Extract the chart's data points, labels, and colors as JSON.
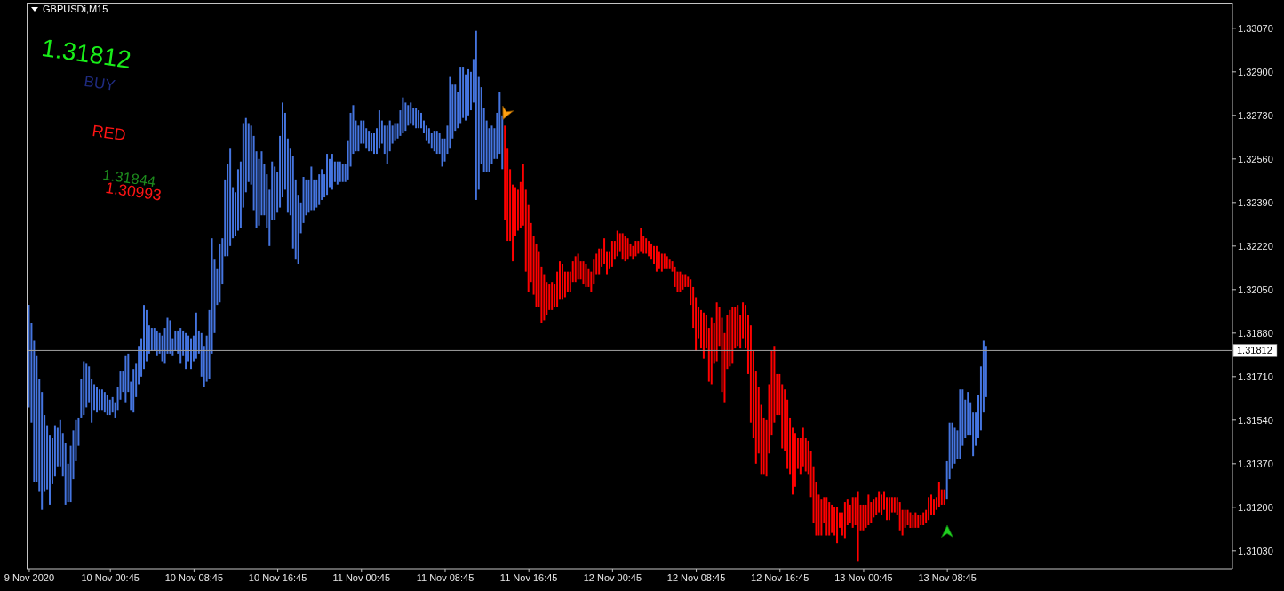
{
  "chart_data": {
    "type": "bar",
    "title": "GBPUSDi,M15",
    "series": [
      {
        "color": "#4575e0",
        "x": [
          "2020-11-09T17:00",
          "2020-11-09T17:15",
          "2020-11-09T17:30",
          "2020-11-09T17:45",
          "2020-11-09T18:00",
          "2020-11-09T18:15",
          "2020-11-09T18:30",
          "2020-11-09T18:45",
          "2020-11-09T19:00",
          "2020-11-09T19:15",
          "2020-11-09T19:30",
          "2020-11-09T19:45",
          "2020-11-09T20:00",
          "2020-11-09T20:15",
          "2020-11-09T20:30",
          "2020-11-09T20:45",
          "2020-11-09T21:00",
          "2020-11-09T21:15",
          "2020-11-09T21:30",
          "2020-11-09T21:45",
          "2020-11-09T22:00",
          "2020-11-09T22:15",
          "2020-11-09T22:30",
          "2020-11-09T22:45",
          "2020-11-09T23:00",
          "2020-11-09T23:15",
          "2020-11-09T23:30",
          "2020-11-09T23:45",
          "2020-11-10T00:00",
          "2020-11-10T00:15",
          "2020-11-10T00:30",
          "2020-11-10T00:45",
          "2020-11-10T01:00",
          "2020-11-10T01:15",
          "2020-11-10T01:30",
          "2020-11-10T01:45",
          "2020-11-10T02:00",
          "2020-11-10T02:15",
          "2020-11-10T02:30",
          "2020-11-10T02:45",
          "2020-11-10T03:00",
          "2020-11-10T03:15",
          "2020-11-10T03:30",
          "2020-11-10T03:45",
          "2020-11-10T04:00",
          "2020-11-10T04:15",
          "2020-11-10T04:30",
          "2020-11-10T04:45",
          "2020-11-10T05:00",
          "2020-11-10T05:15",
          "2020-11-10T05:30",
          "2020-11-10T05:45",
          "2020-11-10T06:00",
          "2020-11-10T06:15",
          "2020-11-10T06:30",
          "2020-11-10T06:45",
          "2020-11-10T07:00",
          "2020-11-10T07:15",
          "2020-11-10T07:30",
          "2020-11-10T07:45",
          "2020-11-10T08:00",
          "2020-11-10T08:15",
          "2020-11-10T08:30",
          "2020-11-10T08:45",
          "2020-11-10T09:00",
          "2020-11-10T09:15",
          "2020-11-10T09:30",
          "2020-11-10T09:45",
          "2020-11-10T10:00",
          "2020-11-10T10:15",
          "2020-11-10T10:30",
          "2020-11-10T10:45",
          "2020-11-10T11:00",
          "2020-11-10T11:15",
          "2020-11-10T11:30",
          "2020-11-10T11:45",
          "2020-11-10T12:00",
          "2020-11-10T12:15",
          "2020-11-10T12:30",
          "2020-11-10T12:45",
          "2020-11-10T13:00",
          "2020-11-10T13:15",
          "2020-11-10T13:30",
          "2020-11-10T13:45",
          "2020-11-10T14:00",
          "2020-11-10T14:15",
          "2020-11-10T14:30",
          "2020-11-10T14:45",
          "2020-11-10T15:00",
          "2020-11-10T15:15",
          "2020-11-10T15:30",
          "2020-11-10T15:45",
          "2020-11-10T16:00",
          "2020-11-10T16:15",
          "2020-11-10T16:30",
          "2020-11-10T16:45",
          "2020-11-10T17:00",
          "2020-11-10T17:15",
          "2020-11-10T17:30",
          "2020-11-10T17:45",
          "2020-11-10T18:00",
          "2020-11-10T18:15",
          "2020-11-10T18:30",
          "2020-11-10T18:45",
          "2020-11-10T19:00",
          "2020-11-10T19:15",
          "2020-11-10T19:30",
          "2020-11-10T19:45",
          "2020-11-10T20:00",
          "2020-11-10T20:15",
          "2020-11-10T20:30",
          "2020-11-10T20:45",
          "2020-11-10T21:00",
          "2020-11-10T21:15",
          "2020-11-10T21:30",
          "2020-11-10T21:45",
          "2020-11-10T22:00",
          "2020-11-10T22:15",
          "2020-11-10T22:30",
          "2020-11-10T22:45",
          "2020-11-10T23:00",
          "2020-11-10T23:15",
          "2020-11-10T23:30",
          "2020-11-10T23:45",
          "2020-11-11T00:00",
          "2020-11-11T00:15",
          "2020-11-11T00:30",
          "2020-11-11T00:45",
          "2020-11-11T01:00",
          "2020-11-11T01:15",
          "2020-11-11T01:30",
          "2020-11-11T01:45",
          "2020-11-11T02:00",
          "2020-11-11T02:15",
          "2020-11-11T02:30",
          "2020-11-11T02:45",
          "2020-11-11T03:00",
          "2020-11-11T03:15",
          "2020-11-11T03:30",
          "2020-11-11T03:45",
          "2020-11-11T04:00",
          "2020-11-11T04:15",
          "2020-11-11T04:30",
          "2020-11-11T04:45",
          "2020-11-11T05:00",
          "2020-11-11T05:15",
          "2020-11-11T05:30",
          "2020-11-11T05:45",
          "2020-11-11T06:00",
          "2020-11-11T06:15",
          "2020-11-11T06:30",
          "2020-11-11T06:45",
          "2020-11-11T07:00",
          "2020-11-11T07:15",
          "2020-11-11T07:30",
          "2020-11-11T07:45",
          "2020-11-11T08:00",
          "2020-11-11T08:15",
          "2020-11-11T08:30",
          "2020-11-11T08:45",
          "2020-11-11T09:00",
          "2020-11-11T09:15",
          "2020-11-11T09:30",
          "2020-11-11T09:45",
          "2020-11-11T10:00",
          "2020-11-11T10:15",
          "2020-11-11T10:30",
          "2020-11-11T10:45",
          "2020-11-11T11:00",
          "2020-11-11T11:15",
          "2020-11-11T11:30",
          "2020-11-11T11:45",
          "2020-11-11T12:00",
          "2020-11-11T12:15",
          "2020-11-11T12:30",
          "2020-11-11T12:45",
          "2020-11-11T13:00",
          "2020-11-11T13:15",
          "2020-11-11T13:30",
          "2020-11-11T13:45",
          "2020-11-11T14:00",
          "2020-11-11T14:15",
          "2020-11-13T08:45",
          "2020-11-13T09:00",
          "2020-11-13T09:15",
          "2020-11-13T09:30",
          "2020-11-13T09:45",
          "2020-11-13T10:00",
          "2020-11-13T10:15",
          "2020-11-13T10:30",
          "2020-11-13T10:45",
          "2020-11-13T11:00",
          "2020-11-13T11:15",
          "2020-11-13T11:30",
          "2020-11-13T11:45",
          "2020-11-13T12:00",
          "2020-11-13T12:15",
          "2020-11-13T12:30"
        ],
        "base": [
          1.3159,
          1.3153,
          1.313,
          1.313,
          1.3126,
          1.3119,
          1.3126,
          1.3127,
          1.3121,
          1.3129,
          1.3132,
          1.3136,
          1.3136,
          1.3132,
          1.3121,
          1.3122,
          1.3122,
          1.3131,
          1.3138,
          1.3144,
          1.3155,
          1.3156,
          1.3159,
          1.3161,
          1.3153,
          1.3158,
          1.3157,
          1.3158,
          1.3158,
          1.3157,
          1.3156,
          1.3156,
          1.3157,
          1.3155,
          1.3158,
          1.3162,
          1.3165,
          1.3161,
          1.3165,
          1.3158,
          1.3157,
          1.3163,
          1.3168,
          1.3171,
          1.3174,
          1.3177,
          1.318,
          1.3181,
          1.3181,
          1.3179,
          1.318,
          1.3177,
          1.3176,
          1.318,
          1.318,
          1.3179,
          1.3181,
          1.318,
          1.3176,
          1.3179,
          1.3174,
          1.3177,
          1.3174,
          1.3177,
          1.3178,
          1.318,
          1.3171,
          1.3167,
          1.3169,
          1.317,
          1.318,
          1.3188,
          1.3199,
          1.32,
          1.3207,
          1.3218,
          1.3218,
          1.3222,
          1.3225,
          1.3226,
          1.3228,
          1.3229,
          1.3237,
          1.3243,
          1.3247,
          1.3246,
          1.3236,
          1.3229,
          1.323,
          1.3234,
          1.3234,
          1.3229,
          1.3222,
          1.3232,
          1.3232,
          1.3235,
          1.3237,
          1.3241,
          1.3244,
          1.3235,
          1.3234,
          1.3221,
          1.3217,
          1.3215,
          1.3227,
          1.3231,
          1.3234,
          1.3235,
          1.3236,
          1.3236,
          1.3237,
          1.3238,
          1.324,
          1.3241,
          1.3242,
          1.3245,
          1.3244,
          1.3247,
          1.3246,
          1.3247,
          1.3247,
          1.3247,
          1.3248,
          1.3253,
          1.3258,
          1.3259,
          1.3259,
          1.3262,
          1.3262,
          1.326,
          1.3259,
          1.3259,
          1.3258,
          1.3258,
          1.326,
          1.3262,
          1.3258,
          1.3254,
          1.3259,
          1.3262,
          1.3263,
          1.3264,
          1.3265,
          1.3266,
          1.3267,
          1.3269,
          1.327,
          1.3269,
          1.3268,
          1.3268,
          1.3268,
          1.3266,
          1.3263,
          1.3262,
          1.326,
          1.3259,
          1.3258,
          1.3258,
          1.3253,
          1.3255,
          1.3258,
          1.326,
          1.3264,
          1.3267,
          1.3268,
          1.327,
          1.3272,
          1.3271,
          1.3273,
          1.3275,
          1.3278,
          1.324,
          1.3244,
          1.3254,
          1.3251,
          1.3251,
          1.3251,
          1.3254,
          1.3256,
          1.3256,
          1.3258,
          1.3252,
          1.3123,
          1.3131,
          1.3135,
          1.3137,
          1.3139,
          1.3139,
          1.3144,
          1.3147,
          1.3148,
          1.3148,
          1.314,
          1.3144,
          1.3147,
          1.315,
          1.3157,
          1.3163
        ],
        "values": [
          0.004,
          0.0039,
          0.0055,
          0.0049,
          0.0044,
          0.0046,
          0.003,
          0.0025,
          0.0027,
          0.0018,
          0.002,
          0.0015,
          0.0018,
          0.0017,
          0.0024,
          0.0015,
          0.0022,
          0.0019,
          0.0016,
          0.0011,
          0.0015,
          0.0021,
          0.0017,
          0.0014,
          0.0017,
          0.001,
          0.001,
          0.0008,
          0.0008,
          0.0008,
          0.0008,
          0.0006,
          0.0006,
          0.0006,
          0.0009,
          0.0011,
          0.0008,
          0.0018,
          0.0015,
          0.0011,
          0.0017,
          0.0013,
          0.0015,
          0.0015,
          0.0025,
          0.002,
          0.0011,
          0.0009,
          0.0009,
          0.001,
          0.0008,
          0.001,
          0.0014,
          0.0014,
          0.0013,
          0.0007,
          0.0008,
          0.0009,
          0.0014,
          0.001,
          0.0014,
          0.001,
          0.0012,
          0.001,
          0.0018,
          0.0009,
          0.0017,
          0.0016,
          0.0018,
          0.0027,
          0.0045,
          0.0029,
          0.0014,
          0.0023,
          0.0018,
          0.003,
          0.0036,
          0.0038,
          0.002,
          0.0017,
          0.0024,
          0.0026,
          0.0033,
          0.0029,
          0.0023,
          0.0023,
          0.0029,
          0.003,
          0.0026,
          0.0025,
          0.002,
          0.0021,
          0.0022,
          0.0023,
          0.0021,
          0.0016,
          0.0028,
          0.0037,
          0.003,
          0.0029,
          0.0026,
          0.0036,
          0.0031,
          0.0027,
          0.0012,
          0.0018,
          0.0014,
          0.0013,
          0.0017,
          0.0012,
          0.0011,
          0.0012,
          0.0012,
          0.0009,
          0.0016,
          0.0011,
          0.0014,
          0.0008,
          0.0009,
          0.0008,
          0.0007,
          0.0007,
          0.0015,
          0.0021,
          0.0019,
          0.0012,
          0.001,
          0.0009,
          0.0009,
          0.0008,
          0.0008,
          0.0007,
          0.0008,
          0.001,
          0.0015,
          0.0009,
          0.0011,
          0.0015,
          0.0012,
          0.0007,
          0.0007,
          0.0006,
          0.001,
          0.0014,
          0.0011,
          0.0008,
          0.0008,
          0.0007,
          0.0008,
          0.0007,
          0.0006,
          0.0005,
          0.0006,
          0.0006,
          0.0006,
          0.0008,
          0.0009,
          0.0008,
          0.0011,
          0.0009,
          0.0011,
          0.0028,
          0.0021,
          0.0018,
          0.0014,
          0.0022,
          0.002,
          0.0018,
          0.0018,
          0.0015,
          0.0017,
          0.0066,
          0.0044,
          0.003,
          0.0025,
          0.002,
          0.0017,
          0.0015,
          0.0012,
          0.0018,
          0.0024,
          0.0021,
          0.0015,
          0.0022,
          0.0018,
          0.0014,
          0.0011,
          0.0027,
          0.0022,
          0.0015,
          0.0017,
          0.0013,
          0.0017,
          0.0013,
          0.0017,
          0.0025,
          0.0028,
          0.002
        ]
      },
      {
        "color": "#ff0000",
        "x": [
          "2020-11-11T14:30",
          "2020-11-11T14:45",
          "2020-11-11T15:00",
          "2020-11-11T15:15",
          "2020-11-11T15:30",
          "2020-11-11T15:45",
          "2020-11-11T16:00",
          "2020-11-11T16:15",
          "2020-11-11T16:30",
          "2020-11-11T16:45",
          "2020-11-11T17:00",
          "2020-11-11T17:15",
          "2020-11-11T17:30",
          "2020-11-11T17:45",
          "2020-11-11T18:00",
          "2020-11-11T18:15",
          "2020-11-11T18:30",
          "2020-11-11T18:45",
          "2020-11-11T19:00",
          "2020-11-11T19:15",
          "2020-11-11T19:30",
          "2020-11-11T19:45",
          "2020-11-11T20:00",
          "2020-11-11T20:15",
          "2020-11-11T20:30",
          "2020-11-11T20:45",
          "2020-11-11T21:00",
          "2020-11-11T21:15",
          "2020-11-11T21:30",
          "2020-11-11T21:45",
          "2020-11-11T22:00",
          "2020-11-11T22:15",
          "2020-11-11T22:30",
          "2020-11-11T22:45",
          "2020-11-11T23:00",
          "2020-11-11T23:15",
          "2020-11-11T23:30",
          "2020-11-11T23:45",
          "2020-11-12T00:00",
          "2020-11-12T00:15",
          "2020-11-12T00:30",
          "2020-11-12T00:45",
          "2020-11-12T01:00",
          "2020-11-12T01:15",
          "2020-11-12T01:30",
          "2020-11-12T01:45",
          "2020-11-12T02:00",
          "2020-11-12T02:15",
          "2020-11-12T02:30",
          "2020-11-12T02:45",
          "2020-11-12T03:00",
          "2020-11-12T03:15",
          "2020-11-12T03:30",
          "2020-11-12T03:45",
          "2020-11-12T04:00",
          "2020-11-12T04:15",
          "2020-11-12T04:30",
          "2020-11-12T04:45",
          "2020-11-12T05:00",
          "2020-11-12T05:15",
          "2020-11-12T05:30",
          "2020-11-12T05:45",
          "2020-11-12T06:00",
          "2020-11-12T06:15",
          "2020-11-12T06:30",
          "2020-11-12T06:45",
          "2020-11-12T07:00",
          "2020-11-12T07:15",
          "2020-11-12T07:30",
          "2020-11-12T07:45",
          "2020-11-12T08:00",
          "2020-11-12T08:15",
          "2020-11-12T08:30",
          "2020-11-12T08:45",
          "2020-11-12T09:00",
          "2020-11-12T09:15",
          "2020-11-12T09:30",
          "2020-11-12T09:45",
          "2020-11-12T10:00",
          "2020-11-12T10:15",
          "2020-11-12T10:30",
          "2020-11-12T10:45",
          "2020-11-12T11:00",
          "2020-11-12T11:15",
          "2020-11-12T11:30",
          "2020-11-12T11:45",
          "2020-11-12T12:00",
          "2020-11-12T12:15",
          "2020-11-12T12:30",
          "2020-11-12T12:45",
          "2020-11-12T13:00",
          "2020-11-12T13:15",
          "2020-11-12T13:30",
          "2020-11-12T13:45",
          "2020-11-12T14:00",
          "2020-11-12T14:15",
          "2020-11-12T14:30",
          "2020-11-12T14:45",
          "2020-11-12T15:00",
          "2020-11-12T15:15",
          "2020-11-12T15:30",
          "2020-11-12T15:45",
          "2020-11-12T16:00",
          "2020-11-12T16:15",
          "2020-11-12T16:30",
          "2020-11-12T16:45",
          "2020-11-12T17:00",
          "2020-11-12T17:15",
          "2020-11-12T17:30",
          "2020-11-12T17:45",
          "2020-11-12T18:00",
          "2020-11-12T18:15",
          "2020-11-12T18:30",
          "2020-11-12T18:45",
          "2020-11-12T19:00",
          "2020-11-12T19:15",
          "2020-11-12T19:30",
          "2020-11-12T19:45",
          "2020-11-12T20:00",
          "2020-11-12T20:15",
          "2020-11-12T20:30",
          "2020-11-12T20:45",
          "2020-11-12T21:00",
          "2020-11-12T21:15",
          "2020-11-12T21:30",
          "2020-11-12T21:45",
          "2020-11-12T22:00",
          "2020-11-12T22:15",
          "2020-11-12T22:30",
          "2020-11-12T22:45",
          "2020-11-12T23:00",
          "2020-11-12T23:15",
          "2020-11-12T23:30",
          "2020-11-12T23:45",
          "2020-11-13T00:00",
          "2020-11-13T00:15",
          "2020-11-13T00:30",
          "2020-11-13T00:45",
          "2020-11-13T01:00",
          "2020-11-13T01:15",
          "2020-11-13T01:30",
          "2020-11-13T01:45",
          "2020-11-13T02:00",
          "2020-11-13T02:15",
          "2020-11-13T02:30",
          "2020-11-13T02:45",
          "2020-11-13T03:00",
          "2020-11-13T03:15",
          "2020-11-13T03:30",
          "2020-11-13T03:45",
          "2020-11-13T04:00",
          "2020-11-13T04:15",
          "2020-11-13T04:30",
          "2020-11-13T04:45",
          "2020-11-13T05:00",
          "2020-11-13T05:15",
          "2020-11-13T05:30",
          "2020-11-13T05:45",
          "2020-11-13T06:00",
          "2020-11-13T06:15",
          "2020-11-13T06:30",
          "2020-11-13T06:45",
          "2020-11-13T07:00",
          "2020-11-13T07:15",
          "2020-11-13T07:30",
          "2020-11-13T07:45",
          "2020-11-13T08:00",
          "2020-11-13T08:15",
          "2020-11-13T08:30"
        ],
        "base": [
          1.3232,
          1.3224,
          1.3224,
          1.3216,
          1.3226,
          1.3228,
          1.3229,
          1.323,
          1.3212,
          1.3204,
          1.3208,
          1.3203,
          1.3198,
          1.3198,
          1.3192,
          1.3193,
          1.3195,
          1.3197,
          1.3197,
          1.3198,
          1.3198,
          1.3201,
          1.3201,
          1.3202,
          1.3204,
          1.3204,
          1.3208,
          1.3208,
          1.3209,
          1.3209,
          1.3207,
          1.3206,
          1.3206,
          1.3204,
          1.3207,
          1.3211,
          1.3211,
          1.3214,
          1.3215,
          1.3211,
          1.3213,
          1.3214,
          1.3217,
          1.3218,
          1.322,
          1.3217,
          1.3216,
          1.3217,
          1.3218,
          1.3217,
          1.3218,
          1.3219,
          1.322,
          1.3219,
          1.3219,
          1.3218,
          1.3217,
          1.3215,
          1.3212,
          1.3213,
          1.3212,
          1.3213,
          1.3213,
          1.3213,
          1.3212,
          1.3206,
          1.3204,
          1.3204,
          1.3205,
          1.3206,
          1.3206,
          1.3199,
          1.319,
          1.3181,
          1.3186,
          1.3182,
          1.3178,
          1.3182,
          1.3169,
          1.3168,
          1.3176,
          1.3177,
          1.3183,
          1.3165,
          1.3161,
          1.3174,
          1.3175,
          1.3176,
          1.3182,
          1.3183,
          1.3182,
          1.3186,
          1.3182,
          1.3172,
          1.3153,
          1.3147,
          1.3137,
          1.3141,
          1.3133,
          1.3133,
          1.3132,
          1.3141,
          1.3148,
          1.3153,
          1.3156,
          1.3156,
          1.3143,
          1.3142,
          1.3135,
          1.3133,
          1.3125,
          1.3128,
          1.3135,
          1.3133,
          1.3136,
          1.3134,
          1.3133,
          1.3124,
          1.3114,
          1.3109,
          1.3109,
          1.3109,
          1.3114,
          1.3109,
          1.3109,
          1.311,
          1.3109,
          1.3106,
          1.3112,
          1.3109,
          1.3108,
          1.3113,
          1.3114,
          1.3112,
          1.3113,
          1.3099,
          1.3111,
          1.3111,
          1.3112,
          1.3113,
          1.3114,
          1.3116,
          1.3117,
          1.3118,
          1.3117,
          1.3119,
          1.3115,
          1.3115,
          1.3118,
          1.3118,
          1.3117,
          1.3111,
          1.3109,
          1.3112,
          1.3113,
          1.3112,
          1.3112,
          1.3112,
          1.3112,
          1.3113,
          1.3113,
          1.3114,
          1.3115,
          1.3117,
          1.3117,
          1.3119,
          1.312,
          1.3121,
          1.3121
        ],
        "values": [
          0.0037,
          0.0036,
          0.0028,
          0.003,
          0.0019,
          0.0016,
          0.0018,
          0.0024,
          0.0032,
          0.0034,
          0.0023,
          0.0023,
          0.0025,
          0.0022,
          0.0022,
          0.0018,
          0.0013,
          0.001,
          0.0011,
          0.0009,
          0.0014,
          0.0015,
          0.0014,
          0.001,
          0.0008,
          0.0008,
          0.0008,
          0.001,
          0.001,
          0.0007,
          0.0009,
          0.0009,
          0.0007,
          0.0008,
          0.001,
          0.0008,
          0.001,
          0.0007,
          0.001,
          0.0009,
          0.0007,
          0.001,
          0.0007,
          0.001,
          0.0007,
          0.001,
          0.001,
          0.0008,
          0.0005,
          0.0005,
          0.0006,
          0.0005,
          0.0009,
          0.0007,
          0.0006,
          0.0006,
          0.0006,
          0.0007,
          0.001,
          0.0007,
          0.0007,
          0.0006,
          0.0005,
          0.0004,
          0.0004,
          0.0008,
          0.0008,
          0.0008,
          0.0006,
          0.0005,
          0.0004,
          0.001,
          0.0016,
          0.0021,
          0.0012,
          0.0015,
          0.0018,
          0.0013,
          0.0021,
          0.0026,
          0.0016,
          0.0023,
          0.0015,
          0.0029,
          0.0027,
          0.0021,
          0.0022,
          0.0022,
          0.0016,
          0.0016,
          0.0013,
          0.0014,
          0.0017,
          0.0023,
          0.0038,
          0.0034,
          0.0036,
          0.0026,
          0.0027,
          0.0022,
          0.0022,
          0.0027,
          0.0033,
          0.003,
          0.0016,
          0.0016,
          0.0025,
          0.0024,
          0.0027,
          0.0022,
          0.0026,
          0.0021,
          0.0012,
          0.0014,
          0.0015,
          0.0013,
          0.0013,
          0.0018,
          0.0022,
          0.0021,
          0.0016,
          0.0014,
          0.001,
          0.0015,
          0.0013,
          0.0011,
          0.0011,
          0.0014,
          0.0006,
          0.0009,
          0.0014,
          0.001,
          0.0007,
          0.0012,
          0.0011,
          0.0027,
          0.001,
          0.001,
          0.0009,
          0.0012,
          0.0008,
          0.0007,
          0.0007,
          0.0008,
          0.0008,
          0.0007,
          0.0009,
          0.0009,
          0.0006,
          0.0006,
          0.0007,
          0.0011,
          0.001,
          0.0007,
          0.0006,
          0.0006,
          0.0005,
          0.0006,
          0.0005,
          0.0004,
          0.0005,
          0.0005,
          0.0009,
          0.0008,
          0.0006,
          0.0005,
          0.001,
          0.0006,
          0.0006
        ]
      }
    ],
    "xlim": [
      "2020-11-09T16:45",
      "2020-11-14T12:00"
    ],
    "xticks": [
      {
        "value": "2020-11-09T17:00",
        "label": "9 Nov 2020"
      },
      {
        "value": "2020-11-10T00:45",
        "label": "10 Nov 00:45"
      },
      {
        "value": "2020-11-10T08:45",
        "label": "10 Nov 08:45"
      },
      {
        "value": "2020-11-10T16:45",
        "label": "10 Nov 16:45"
      },
      {
        "value": "2020-11-11T00:45",
        "label": "11 Nov 00:45"
      },
      {
        "value": "2020-11-11T08:45",
        "label": "11 Nov 08:45"
      },
      {
        "value": "2020-11-11T16:45",
        "label": "11 Nov 16:45"
      },
      {
        "value": "2020-11-12T00:45",
        "label": "12 Nov 00:45"
      },
      {
        "value": "2020-11-12T08:45",
        "label": "12 Nov 08:45"
      },
      {
        "value": "2020-11-12T16:45",
        "label": "12 Nov 16:45"
      },
      {
        "value": "2020-11-13T00:45",
        "label": "13 Nov 00:45"
      },
      {
        "value": "2020-11-13T08:45",
        "label": "13 Nov 08:45"
      }
    ],
    "ylim": [
      1.3096,
      1.3317
    ],
    "yticks": [
      {
        "value": 1.3103,
        "label": "1.31030"
      },
      {
        "value": 1.312,
        "label": "1.31200"
      },
      {
        "value": 1.3137,
        "label": "1.31370"
      },
      {
        "value": 1.3154,
        "label": "1.31540"
      },
      {
        "value": 1.3171,
        "label": "1.31710"
      },
      {
        "value": 1.3188,
        "label": "1.31880"
      },
      {
        "value": 1.3205,
        "label": "1.32050"
      },
      {
        "value": 1.3222,
        "label": "1.32220"
      },
      {
        "value": 1.3239,
        "label": "1.32390"
      },
      {
        "value": 1.3256,
        "label": "1.32560"
      },
      {
        "value": 1.3273,
        "label": "1.32730"
      },
      {
        "value": 1.329,
        "label": "1.32900"
      },
      {
        "value": 1.3307,
        "label": "1.33070"
      }
    ],
    "ref_lines": [
      {
        "axis": "y",
        "value": 1.31812,
        "label": "1.31812",
        "color": "#a0a0a0"
      }
    ],
    "annotations": [
      "1.31812",
      "BUY",
      "RED",
      "1.31844",
      "1.30993"
    ]
  }
}
